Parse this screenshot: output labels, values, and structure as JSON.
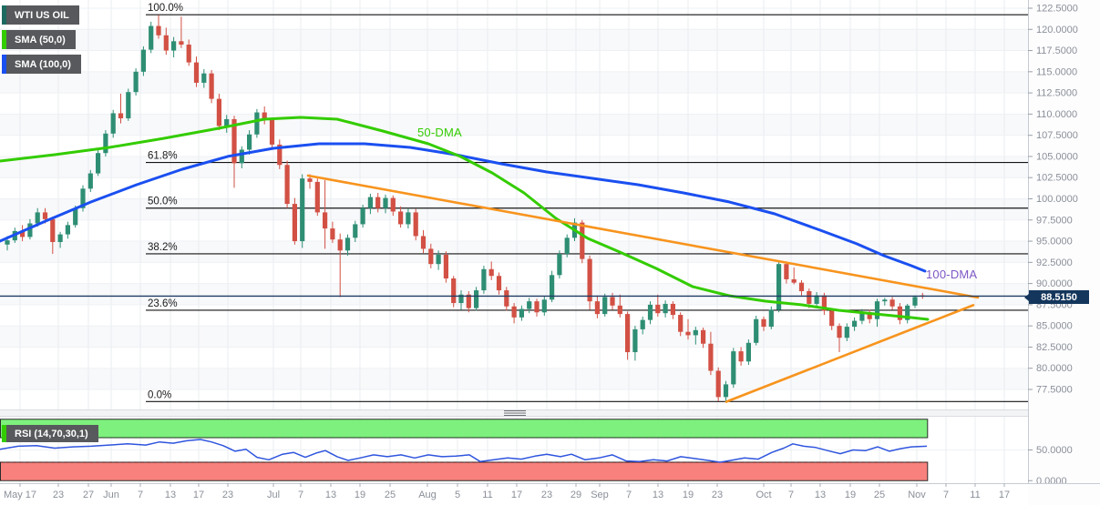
{
  "chart": {
    "legend": [
      {
        "label": "WTI US OIL",
        "bar": "#1d6b60"
      },
      {
        "label": "SMA (50,0)",
        "bar": "#33cc00"
      },
      {
        "label": "SMA (100,0)",
        "bar": "#1a4ff0"
      }
    ],
    "rsi_legend": {
      "label": "RSI (14,70,30,1)",
      "bar": "#33cc00"
    },
    "labels": {
      "sma50_tag": "50-DMA",
      "sma100_tag": "100-DMA"
    },
    "price_tag": "88.5150"
  },
  "colors": {
    "background": "#ffffff",
    "grid_h": "#eef1f4",
    "grid_v": "#e9ecef",
    "band_alt": "#f8f9fb",
    "candle_up": "#2e8e74",
    "candle_down": "#d25044",
    "sma50": "#33cc00",
    "sma100": "#1a4ff0",
    "trendline": "#f7941e",
    "fib_line": "#141414",
    "fib_text": "#1a1a1a",
    "price_line": "#1f3c63",
    "tag_bg": "#14365c",
    "rsi_line": "#2f55de",
    "rsi_upper_band": "#7df07d",
    "rsi_lower_band": "#f8817d",
    "band_border": "#2b2b2b",
    "axis_text": "#8a8f98",
    "axis_border": "#c6cbd3",
    "separator": "#f3f4f6",
    "separator_border": "#d9dce1",
    "label_50dma": "#33cc00",
    "label_100dma": "#7e57c5"
  },
  "chart_data": {
    "type": "candlestick",
    "symbol": "WTI US OIL",
    "current_price": 88.515,
    "y_axis": {
      "ticks": [
        122.5,
        120.0,
        117.5,
        115.0,
        112.5,
        110.0,
        107.5,
        105.0,
        102.5,
        100.0,
        97.5,
        95.0,
        92.5,
        90.0,
        87.5,
        85.0,
        82.5,
        80.0,
        77.5
      ],
      "decimals": 4
    },
    "x_ticks": [
      [
        "May 17",
        22
      ],
      [
        "23",
        64
      ],
      [
        "27",
        97
      ],
      [
        "Jun",
        122
      ],
      [
        "7",
        154
      ],
      [
        "13",
        187
      ],
      [
        "17",
        218
      ],
      [
        "23",
        250
      ],
      [
        "Jul",
        300
      ],
      [
        "7",
        330
      ],
      [
        "13",
        363
      ],
      [
        "19",
        395
      ],
      [
        "25",
        428
      ],
      [
        "Aug",
        469
      ],
      [
        "5",
        502
      ],
      [
        "11",
        535
      ],
      [
        "17",
        567
      ],
      [
        "23",
        600
      ],
      [
        "29",
        632
      ],
      [
        "Sep",
        658
      ],
      [
        "7",
        690
      ],
      [
        "13",
        722
      ],
      [
        "19",
        755
      ],
      [
        "23",
        787
      ],
      [
        "Oct",
        838
      ],
      [
        "7",
        868
      ],
      [
        "13",
        900
      ],
      [
        "19",
        933
      ],
      [
        "25",
        965
      ],
      [
        "Nov",
        1006
      ],
      [
        "7",
        1038
      ],
      [
        "11",
        1070
      ],
      [
        "17",
        1102
      ]
    ],
    "fib_levels": [
      [
        "100.0%",
        121.73
      ],
      [
        "61.8%",
        104.29
      ],
      [
        "50.0%",
        98.9
      ],
      [
        "38.2%",
        93.51
      ],
      [
        "23.6%",
        86.85
      ],
      [
        "0.0%",
        76.07
      ]
    ],
    "trendlines": [
      {
        "name": "upper",
        "x1": 338,
        "p1": 102.74,
        "x2": 1073,
        "p2": 88.35
      },
      {
        "name": "lower",
        "x1": 797,
        "p1": 76.05,
        "x2": 1068,
        "p2": 87.45
      }
    ],
    "sma50": [
      [
        0,
        104.46
      ],
      [
        60,
        105.21
      ],
      [
        120,
        106.07
      ],
      [
        180,
        107.14
      ],
      [
        240,
        108.32
      ],
      [
        290,
        109.4
      ],
      [
        330,
        109.61
      ],
      [
        370,
        109.4
      ],
      [
        420,
        108.0
      ],
      [
        470,
        106.5
      ],
      [
        505,
        105.0
      ],
      [
        540,
        103.06
      ],
      [
        575,
        100.7
      ],
      [
        610,
        97.69
      ],
      [
        645,
        95.33
      ],
      [
        680,
        93.72
      ],
      [
        720,
        91.78
      ],
      [
        760,
        89.64
      ],
      [
        800,
        88.56
      ],
      [
        840,
        87.92
      ],
      [
        880,
        87.49
      ],
      [
        920,
        86.84
      ],
      [
        960,
        86.41
      ],
      [
        1000,
        85.98
      ],
      [
        1018,
        85.77
      ]
    ],
    "sma100": [
      [
        0,
        95.01
      ],
      [
        50,
        97.37
      ],
      [
        100,
        99.63
      ],
      [
        150,
        101.67
      ],
      [
        200,
        103.49
      ],
      [
        250,
        105.0
      ],
      [
        300,
        105.96
      ],
      [
        350,
        106.5
      ],
      [
        400,
        106.5
      ],
      [
        450,
        106.07
      ],
      [
        500,
        105.21
      ],
      [
        550,
        104.14
      ],
      [
        600,
        103.17
      ],
      [
        650,
        102.42
      ],
      [
        700,
        101.67
      ],
      [
        750,
        100.7
      ],
      [
        800,
        99.63
      ],
      [
        850,
        98.23
      ],
      [
        900,
        96.3
      ],
      [
        940,
        94.69
      ],
      [
        970,
        93.29
      ],
      [
        1000,
        92.11
      ],
      [
        1015,
        91.46
      ]
    ],
    "candles": [
      [
        94.6,
        95.6,
        93.9,
        95.1
      ],
      [
        95.1,
        96.6,
        94.8,
        96.2
      ],
      [
        96.2,
        96.9,
        95.0,
        95.5
      ],
      [
        95.5,
        97.6,
        95.2,
        97.1
      ],
      [
        97.1,
        98.9,
        96.7,
        98.4
      ],
      [
        98.4,
        98.9,
        97.1,
        97.6
      ],
      [
        97.6,
        97.9,
        93.5,
        94.9
      ],
      [
        94.9,
        96.1,
        94.2,
        95.8
      ],
      [
        95.8,
        97.3,
        95.3,
        96.9
      ],
      [
        96.9,
        99.2,
        96.6,
        98.9
      ],
      [
        98.9,
        101.6,
        98.5,
        101.2
      ],
      [
        101.2,
        103.4,
        100.8,
        103.0
      ],
      [
        103.0,
        105.9,
        102.7,
        105.4
      ],
      [
        105.4,
        108.1,
        105.0,
        107.7
      ],
      [
        107.7,
        110.5,
        107.2,
        110.1
      ],
      [
        110.1,
        112.4,
        108.9,
        109.5
      ],
      [
        109.5,
        113.0,
        109.2,
        112.6
      ],
      [
        112.6,
        115.4,
        112.2,
        115.0
      ],
      [
        115.0,
        118.0,
        114.5,
        117.6
      ],
      [
        117.6,
        120.9,
        117.2,
        120.4
      ],
      [
        120.4,
        121.7,
        118.9,
        119.3
      ],
      [
        119.3,
        120.2,
        117.0,
        117.5
      ],
      [
        117.5,
        119.1,
        116.7,
        118.6
      ],
      [
        118.6,
        121.5,
        117.8,
        118.2
      ],
      [
        118.2,
        118.8,
        115.7,
        116.1
      ],
      [
        116.1,
        116.8,
        113.2,
        113.7
      ],
      [
        113.7,
        115.3,
        113.1,
        114.8
      ],
      [
        114.8,
        115.2,
        111.3,
        111.8
      ],
      [
        111.8,
        112.4,
        108.1,
        108.6
      ],
      [
        108.6,
        109.9,
        107.8,
        109.4
      ],
      [
        109.4,
        109.8,
        101.3,
        104.2
      ],
      [
        104.2,
        106.2,
        103.6,
        105.8
      ],
      [
        105.8,
        108.1,
        105.2,
        107.6
      ],
      [
        107.6,
        110.6,
        107.2,
        110.2
      ],
      [
        110.2,
        110.9,
        108.8,
        109.3
      ],
      [
        109.3,
        109.6,
        105.9,
        106.4
      ],
      [
        106.4,
        107.0,
        103.5,
        104.0
      ],
      [
        104.0,
        104.5,
        98.9,
        99.4
      ],
      [
        99.4,
        100.1,
        94.6,
        95.0
      ],
      [
        95.0,
        102.9,
        94.2,
        102.4
      ],
      [
        102.4,
        102.9,
        101.2,
        102.0
      ],
      [
        102.0,
        102.4,
        98.0,
        98.4
      ],
      [
        98.4,
        102.2,
        94.1,
        96.5
      ],
      [
        96.5,
        97.3,
        94.8,
        95.2
      ],
      [
        95.2,
        95.9,
        88.4,
        93.9
      ],
      [
        93.9,
        95.8,
        93.3,
        95.4
      ],
      [
        95.4,
        97.4,
        94.9,
        97.0
      ],
      [
        97.0,
        99.3,
        96.6,
        98.9
      ],
      [
        98.9,
        100.6,
        98.2,
        100.2
      ],
      [
        100.2,
        100.7,
        98.4,
        98.9
      ],
      [
        98.9,
        100.5,
        98.3,
        100.1
      ],
      [
        100.1,
        100.4,
        98.0,
        98.5
      ],
      [
        98.5,
        99.1,
        96.6,
        97.0
      ],
      [
        97.0,
        98.9,
        96.5,
        98.4
      ],
      [
        98.4,
        98.8,
        95.1,
        95.6
      ],
      [
        95.6,
        96.3,
        93.6,
        94.1
      ],
      [
        94.1,
        94.7,
        91.8,
        92.3
      ],
      [
        92.3,
        93.9,
        91.6,
        93.4
      ],
      [
        93.4,
        93.8,
        90.1,
        90.6
      ],
      [
        90.6,
        90.9,
        87.2,
        87.7
      ],
      [
        87.7,
        89.2,
        86.9,
        88.7
      ],
      [
        88.7,
        89.1,
        86.6,
        87.1
      ],
      [
        87.1,
        89.6,
        86.8,
        89.2
      ],
      [
        89.2,
        92.1,
        88.8,
        91.7
      ],
      [
        91.7,
        92.6,
        90.4,
        90.9
      ],
      [
        90.9,
        91.3,
        88.7,
        89.2
      ],
      [
        89.2,
        89.6,
        86.8,
        87.3
      ],
      [
        87.3,
        87.7,
        85.3,
        86.0
      ],
      [
        86.0,
        87.4,
        85.6,
        87.0
      ],
      [
        87.0,
        88.3,
        86.5,
        87.9
      ],
      [
        87.9,
        88.2,
        86.1,
        86.6
      ],
      [
        86.6,
        88.5,
        86.2,
        88.1
      ],
      [
        88.1,
        91.5,
        87.8,
        91.0
      ],
      [
        91.0,
        93.9,
        90.6,
        93.5
      ],
      [
        93.5,
        95.8,
        93.1,
        95.4
      ],
      [
        95.4,
        97.7,
        95.0,
        97.2
      ],
      [
        97.2,
        97.5,
        92.4,
        92.9
      ],
      [
        92.9,
        93.3,
        86.9,
        87.9
      ],
      [
        87.9,
        88.6,
        85.9,
        86.4
      ],
      [
        86.4,
        88.8,
        86.1,
        88.4
      ],
      [
        88.4,
        88.9,
        86.9,
        87.4
      ],
      [
        87.4,
        88.7,
        86.0,
        86.4
      ],
      [
        86.4,
        86.7,
        81.0,
        81.9
      ],
      [
        81.9,
        85.0,
        80.9,
        84.6
      ],
      [
        84.6,
        86.1,
        84.0,
        85.7
      ],
      [
        85.7,
        87.9,
        85.2,
        87.5
      ],
      [
        87.5,
        88.7,
        86.1,
        86.5
      ],
      [
        86.5,
        88.0,
        86.0,
        87.6
      ],
      [
        87.6,
        87.9,
        85.8,
        86.3
      ],
      [
        86.3,
        86.6,
        83.8,
        84.3
      ],
      [
        84.3,
        85.8,
        83.4,
        83.9
      ],
      [
        83.9,
        84.9,
        82.8,
        84.5
      ],
      [
        84.5,
        84.8,
        82.4,
        82.9
      ],
      [
        82.9,
        84.3,
        79.2,
        79.7
      ],
      [
        79.7,
        80.1,
        76.1,
        76.6
      ],
      [
        76.6,
        78.5,
        76.0,
        78.1
      ],
      [
        78.1,
        82.4,
        77.7,
        82.0
      ],
      [
        82.0,
        82.5,
        80.3,
        80.8
      ],
      [
        80.8,
        83.4,
        80.4,
        83.0
      ],
      [
        83.0,
        86.2,
        82.7,
        85.8
      ],
      [
        85.8,
        86.1,
        84.4,
        84.9
      ],
      [
        84.9,
        87.3,
        84.6,
        86.9
      ],
      [
        86.9,
        92.7,
        86.6,
        92.3
      ],
      [
        92.3,
        92.6,
        90.0,
        90.5
      ],
      [
        90.5,
        91.9,
        89.9,
        90.1
      ],
      [
        90.1,
        90.4,
        88.6,
        89.1
      ],
      [
        89.1,
        89.4,
        87.1,
        87.6
      ],
      [
        87.6,
        89.0,
        87.2,
        88.6
      ],
      [
        88.6,
        88.9,
        86.3,
        86.8
      ],
      [
        86.8,
        87.1,
        84.5,
        85.0
      ],
      [
        85.0,
        85.3,
        81.9,
        83.6
      ],
      [
        83.6,
        85.3,
        83.2,
        84.9
      ],
      [
        84.9,
        86.0,
        84.4,
        85.6
      ],
      [
        85.6,
        87.0,
        85.2,
        86.6
      ],
      [
        86.6,
        86.9,
        85.3,
        85.8
      ],
      [
        85.8,
        88.2,
        84.9,
        87.9
      ],
      [
        87.9,
        88.3,
        87.4,
        88.1
      ],
      [
        88.1,
        88.4,
        86.9,
        87.3
      ],
      [
        87.3,
        87.7,
        85.2,
        85.7
      ],
      [
        85.7,
        87.6,
        85.3,
        87.4
      ],
      [
        87.4,
        88.6,
        87.1,
        88.4
      ],
      [
        88.6,
        88.9,
        88.2,
        88.5
      ]
    ],
    "rsi": {
      "params": [
        14,
        70,
        30,
        1
      ],
      "overbought": 70,
      "oversold": 30,
      "axis_ticks": [
        50.0,
        0.0
      ],
      "points": [
        [
          0,
          51
        ],
        [
          20,
          56
        ],
        [
          40,
          57
        ],
        [
          60,
          53
        ],
        [
          80,
          55
        ],
        [
          100,
          56
        ],
        [
          120,
          58
        ],
        [
          140,
          60
        ],
        [
          160,
          58
        ],
        [
          175,
          63
        ],
        [
          190,
          61
        ],
        [
          205,
          65
        ],
        [
          220,
          67
        ],
        [
          232,
          63
        ],
        [
          245,
          57
        ],
        [
          258,
          48
        ],
        [
          270,
          51
        ],
        [
          282,
          38
        ],
        [
          295,
          34
        ],
        [
          310,
          43
        ],
        [
          322,
          46
        ],
        [
          335,
          38
        ],
        [
          347,
          45
        ],
        [
          357,
          49
        ],
        [
          370,
          39
        ],
        [
          382,
          33
        ],
        [
          395,
          37
        ],
        [
          410,
          42
        ],
        [
          425,
          39
        ],
        [
          440,
          42
        ],
        [
          455,
          37
        ],
        [
          470,
          42
        ],
        [
          485,
          39
        ],
        [
          500,
          40
        ],
        [
          515,
          42
        ],
        [
          527,
          31
        ],
        [
          542,
          34
        ],
        [
          557,
          37
        ],
        [
          572,
          35
        ],
        [
          587,
          40
        ],
        [
          600,
          43
        ],
        [
          615,
          39
        ],
        [
          627,
          43
        ],
        [
          642,
          34
        ],
        [
          657,
          37
        ],
        [
          672,
          42
        ],
        [
          687,
          32
        ],
        [
          702,
          31
        ],
        [
          717,
          34
        ],
        [
          732,
          32
        ],
        [
          747,
          39
        ],
        [
          762,
          36
        ],
        [
          777,
          33
        ],
        [
          790,
          30
        ],
        [
          802,
          33
        ],
        [
          817,
          37
        ],
        [
          832,
          35
        ],
        [
          847,
          46
        ],
        [
          860,
          53
        ],
        [
          870,
          60
        ],
        [
          882,
          56
        ],
        [
          895,
          54
        ],
        [
          908,
          49
        ],
        [
          922,
          44
        ],
        [
          936,
          50
        ],
        [
          950,
          49
        ],
        [
          963,
          55
        ],
        [
          976,
          48
        ],
        [
          988,
          52
        ],
        [
          1000,
          55
        ],
        [
          1017,
          56
        ]
      ]
    }
  }
}
